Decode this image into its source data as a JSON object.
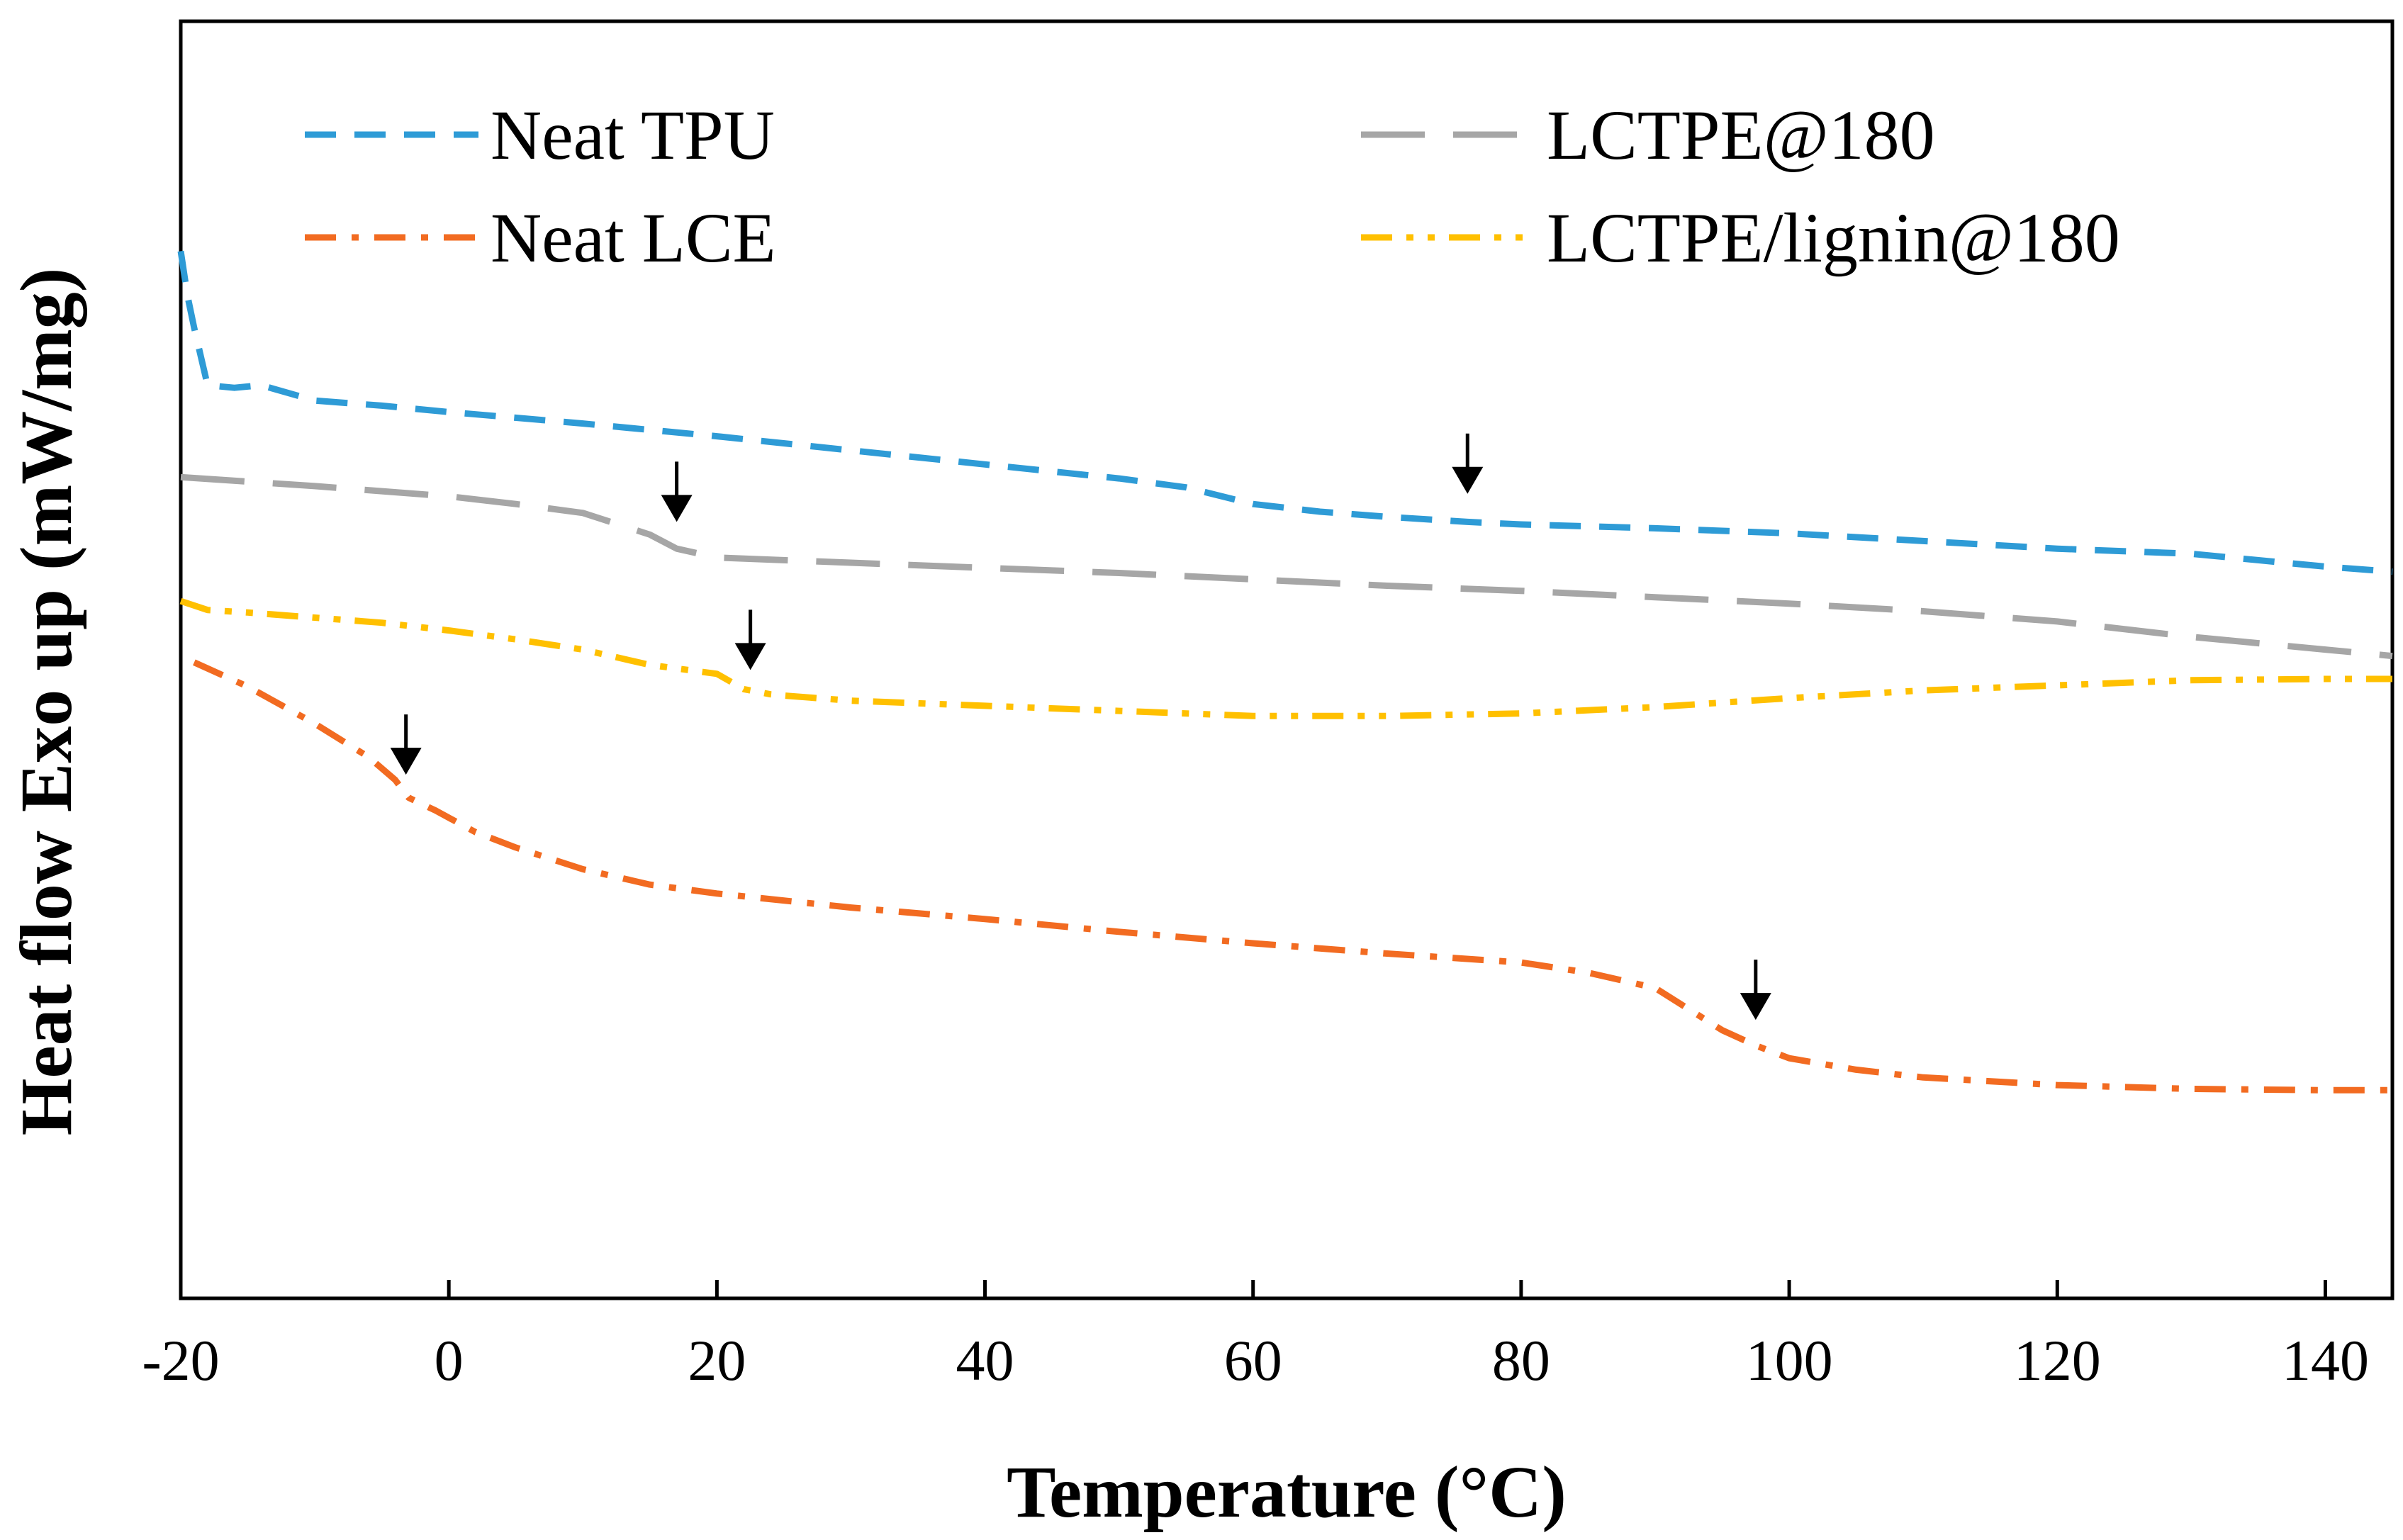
{
  "chart_data": {
    "type": "line",
    "title": "",
    "xlabel": "Temperature (°C)",
    "ylabel": "Heat flow Exo up (mW/mg)",
    "xlim": [
      -20,
      145
    ],
    "ylim": [
      0,
      100
    ],
    "xticks": [
      -20,
      0,
      20,
      40,
      60,
      80,
      100,
      120,
      140
    ],
    "xtick_labels": [
      "-20",
      "0",
      "20",
      "40",
      "60",
      "80",
      "100",
      "120",
      "140"
    ],
    "grid": false,
    "legend_position": "top",
    "series": [
      {
        "name": "Neat TPU",
        "color": "#2e9bd6",
        "dash": "dashed",
        "x": [
          -20,
          -19.5,
          -19,
          -18,
          -16,
          -14,
          -10,
          -5,
          0,
          10,
          20,
          30,
          40,
          50,
          55,
          60,
          65,
          70,
          76,
          80,
          90,
          100,
          110,
          120,
          130,
          140,
          145
        ],
        "y": [
          82,
          78.5,
          76,
          71.5,
          71.3,
          71.5,
          70.3,
          69.9,
          69.4,
          68.5,
          67.5,
          66.4,
          65.3,
          64.2,
          63.5,
          62.2,
          61.6,
          61.2,
          60.8,
          60.6,
          60.3,
          59.9,
          59.3,
          58.7,
          58.3,
          57.3,
          56.9
        ]
      },
      {
        "name": "LCTPE@180",
        "color": "#a6a6a6",
        "dash": "longdash",
        "x": [
          -20,
          -10,
          0,
          5,
          10,
          15,
          17,
          20,
          30,
          40,
          50,
          60,
          70,
          80,
          90,
          100,
          110,
          120,
          130,
          140,
          145
        ],
        "y": [
          64.3,
          63.6,
          62.8,
          62.2,
          61.5,
          59.8,
          58.7,
          58.0,
          57.6,
          57.2,
          56.8,
          56.3,
          55.8,
          55.4,
          54.9,
          54.4,
          53.8,
          53.0,
          51.8,
          50.8,
          50.3
        ]
      },
      {
        "name": "Neat LCE",
        "color": "#f26b21",
        "dash": "dashdot",
        "x": [
          -19,
          -15,
          -10,
          -6,
          -4,
          -3,
          -1,
          2,
          5,
          10,
          15,
          20,
          30,
          40,
          50,
          60,
          70,
          80,
          85,
          90,
          95,
          97.5,
          100,
          105,
          110,
          120,
          130,
          140,
          145
        ],
        "y": [
          49.8,
          47.9,
          45.0,
          42.4,
          40.6,
          39.2,
          38.2,
          36.5,
          35.3,
          33.6,
          32.4,
          31.7,
          30.6,
          29.7,
          28.7,
          27.8,
          27.0,
          26.3,
          25.5,
          24.3,
          21.0,
          19.8,
          18.8,
          17.9,
          17.3,
          16.7,
          16.4,
          16.3,
          16.3
        ]
      },
      {
        "name": "LCTPE/lignin@180",
        "color": "#ffc000",
        "dash": "dashdotdot",
        "x": [
          -20,
          -18,
          -15,
          -10,
          -5,
          0,
          5,
          10,
          15,
          20,
          22,
          24,
          25,
          30,
          40,
          50,
          60,
          70,
          80,
          90,
          100,
          110,
          120,
          130,
          140,
          145
        ],
        "y": [
          54.6,
          53.9,
          53.7,
          53.3,
          52.9,
          52.3,
          51.6,
          50.8,
          49.6,
          48.9,
          47.7,
          47.3,
          47.2,
          46.8,
          46.4,
          46.0,
          45.6,
          45.6,
          45.8,
          46.3,
          47.0,
          47.6,
          48.0,
          48.4,
          48.5,
          48.5
        ]
      }
    ],
    "annotations": [
      {
        "type": "arrow",
        "series": "Neat TPU",
        "x": 76,
        "y": 63.0
      },
      {
        "type": "arrow",
        "series": "LCTPE@180",
        "x": 17,
        "y": 60.8
      },
      {
        "type": "arrow",
        "series": "LCTPE/lignin@180",
        "x": 22.5,
        "y": 49.2
      },
      {
        "type": "arrow",
        "series": "Neat LCE",
        "x": -3.2,
        "y": 41.0
      },
      {
        "type": "arrow",
        "series": "Neat LCE",
        "x": 97.5,
        "y": 21.8
      }
    ]
  }
}
